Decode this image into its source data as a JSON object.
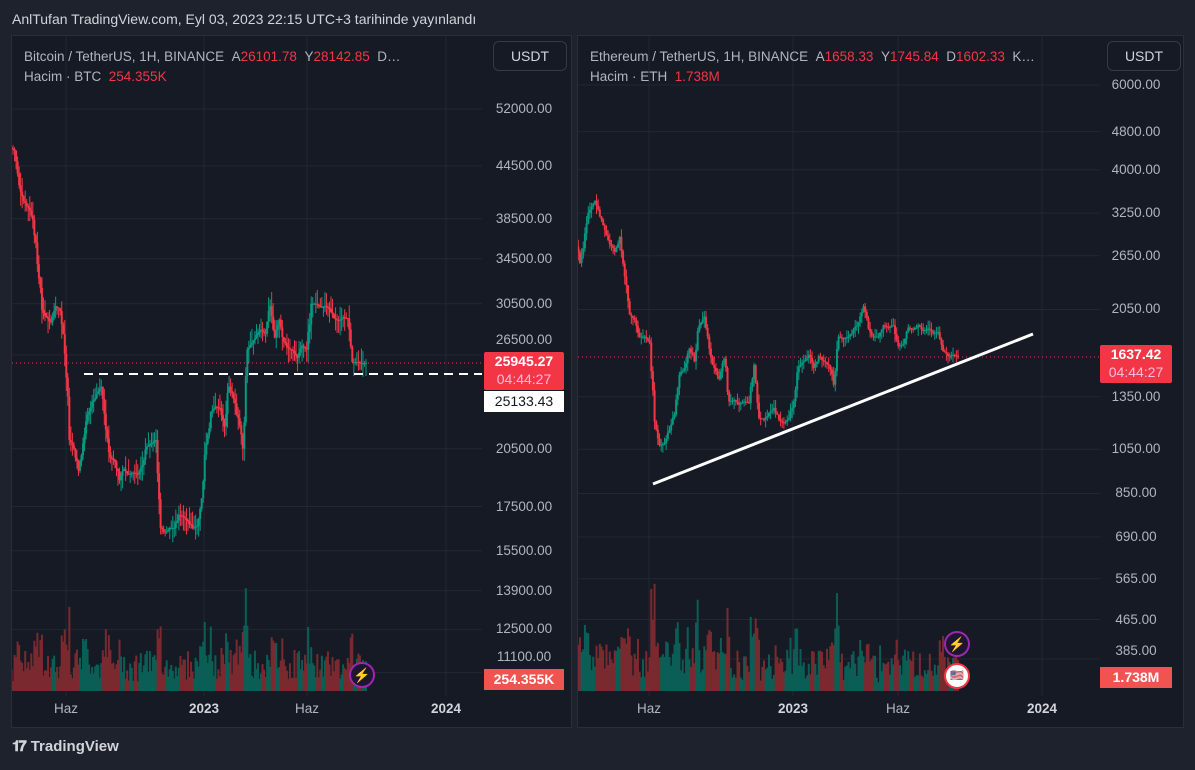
{
  "header": {
    "published": "AnlTufan TradingView.com, Eyl 03, 2023 22:15 UTC+3 tarihinde yayınlandı"
  },
  "footer": {
    "brand": "TradingView"
  },
  "colors": {
    "up": "#089981",
    "down": "#f23645",
    "up_vol": "#0b5e55",
    "down_vol": "#7a2a2e",
    "grid": "#232733"
  },
  "charts": [
    {
      "symbol": "Bitcoin / TetherUS, 1H, BINANCE",
      "o_label": "A",
      "o": "26101.78",
      "h_label": "Y",
      "h": "28142.85",
      "rest": "D…",
      "volume_label": "Hacim · BTC",
      "volume": "254.355K",
      "currency": "USDT",
      "price_ticks": [
        "52000.00",
        "44500.00",
        "38500.00",
        "34500.00",
        "30500.00",
        "26500.00",
        "20500.00",
        "17500.00",
        "15500.00",
        "13900.00",
        "12500.00",
        "11100.00"
      ],
      "last_price": "25945.27",
      "countdown": "04:44:27",
      "line_price": "25133.43",
      "volume_tag": "254.355K",
      "time_ticks": [
        "Haz",
        "2023",
        "Haz",
        "2024"
      ],
      "closes": [
        46800,
        46400,
        42200,
        40400,
        39700,
        38400,
        34000,
        30000,
        29400,
        29000,
        30300,
        29900,
        26600,
        21000,
        20500,
        19300,
        20800,
        22500,
        23300,
        23800,
        24300,
        21600,
        20000,
        19800,
        18800,
        19400,
        19100,
        19200,
        19100,
        19600,
        20600,
        20800,
        21000,
        16500,
        16300,
        16500,
        16500,
        17100,
        17000,
        16800,
        16500,
        16600,
        17900,
        20800,
        22700,
        23000,
        22900,
        21800,
        24300,
        23500,
        22300,
        20500,
        26900,
        27400,
        28000,
        28400,
        28100,
        30300,
        27800,
        29200,
        27500,
        27000,
        26800,
        26300,
        27200,
        26900,
        30500,
        30500,
        30200,
        30300,
        30100,
        29300,
        29100,
        29400,
        29300,
        26000,
        26000,
        25900,
        25945
      ]
    },
    {
      "symbol": "Ethereum / TetherUS, 1H, BINANCE",
      "o_label": "A",
      "o": "1658.33",
      "h_label": "Y",
      "h": "1745.84",
      "l_label": "D",
      "l": "1602.33",
      "rest": "K…",
      "volume_label": "Hacim · ETH",
      "volume": "1.738M",
      "currency": "USDT",
      "price_ticks": [
        "6000.00",
        "4800.00",
        "4000.00",
        "3250.00",
        "2650.00",
        "2050.00",
        "1350.00",
        "1050.00",
        "850.00",
        "690.00",
        "565.00",
        "465.00",
        "385.00"
      ],
      "last_price": "1637.42",
      "countdown": "04:44:27",
      "volume_tag": "1.738M",
      "time_ticks": [
        "Haz",
        "2023",
        "Haz",
        "2024"
      ],
      "closes": [
        2600,
        2900,
        2560,
        2950,
        3300,
        3450,
        3200,
        3000,
        2800,
        2700,
        2900,
        2400,
        2000,
        1950,
        1800,
        1800,
        1750,
        1200,
        1070,
        1080,
        1150,
        1240,
        1500,
        1550,
        1700,
        1600,
        1900,
        1980,
        1700,
        1550,
        1470,
        1620,
        1320,
        1330,
        1300,
        1320,
        1310,
        1570,
        1220,
        1210,
        1250,
        1280,
        1210,
        1190,
        1220,
        1320,
        1560,
        1600,
        1650,
        1550,
        1640,
        1600,
        1570,
        1430,
        1800,
        1780,
        1800,
        1860,
        1930,
        2080,
        1870,
        1800,
        1800,
        1900,
        1880,
        1900,
        1720,
        1740,
        1880,
        1860,
        1900,
        1850,
        1870,
        1830,
        1840,
        1680,
        1640,
        1650,
        1637
      ]
    }
  ]
}
